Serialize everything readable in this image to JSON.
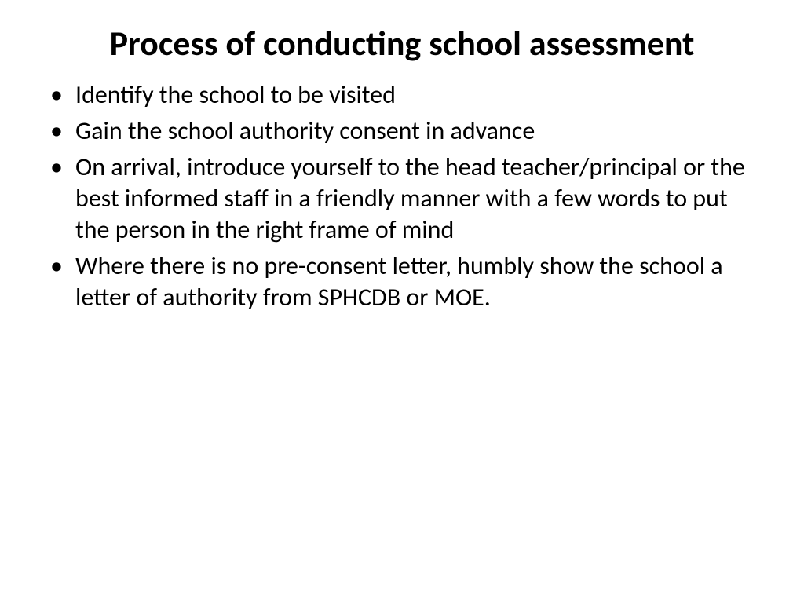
{
  "slide": {
    "title": "Process of conducting school assessment",
    "bullets": [
      "Identify the school to be visited",
      "Gain the school authority consent in advance",
      "On arrival, introduce yourself to the head teacher/principal or the best informed staff in a friendly manner with a few words to put the person in the right frame of mind",
      "Where there is no pre-consent letter, humbly show the school a letter of authority from SPHCDB or MOE."
    ]
  },
  "styling": {
    "background_color": "#ffffff",
    "text_color": "#000000",
    "title_fontsize": 44,
    "title_fontweight": "bold",
    "body_fontsize": 32,
    "font_family": "Calibri, Arial, sans-serif",
    "bullet_char": "•"
  }
}
